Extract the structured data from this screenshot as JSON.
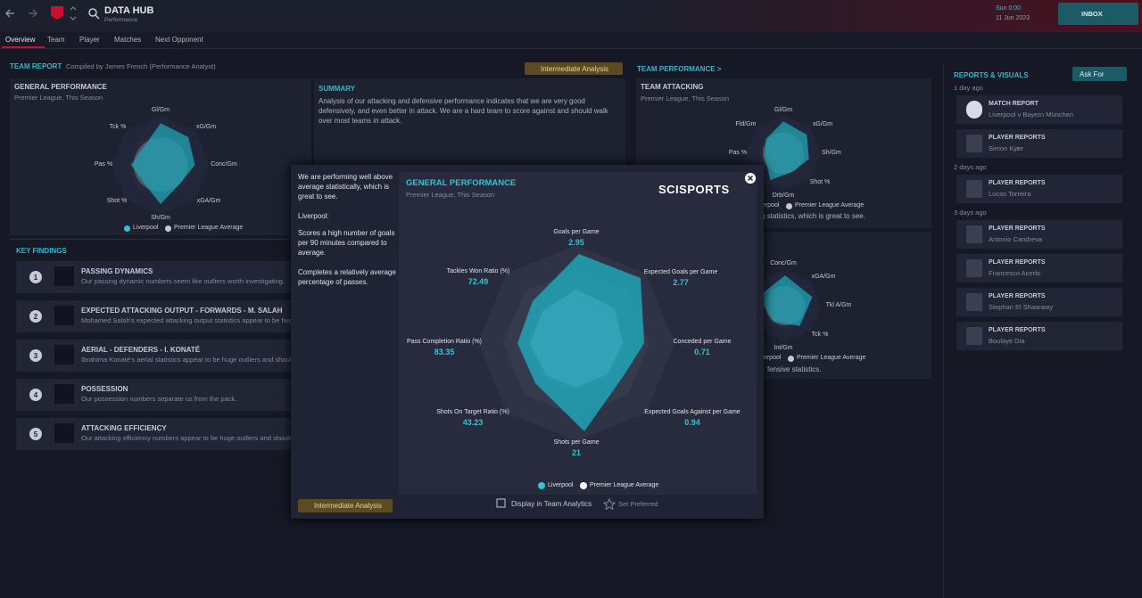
{
  "top_bar": {
    "title": "DATA HUB",
    "subtitle": "Performance",
    "time": "Sun 0:00",
    "date": "11 Jun 2023",
    "inbox": "INBOX"
  },
  "nav": [
    "Overview",
    "Team",
    "Player",
    "Matches",
    "Next Opponent"
  ],
  "team_report": {
    "heading": "TEAM REPORT",
    "compiled_by": "Compiled by James French (Performance Analyst)",
    "badge": "Intermediate Analysis"
  },
  "general_panel": {
    "title": "GENERAL PERFORMANCE",
    "subtitle": "Premier League, This Season",
    "axes": [
      "Gl/Gm",
      "xG/Gm",
      "Conc/Gm",
      "xGA/Gm",
      "Sh/Gm",
      "Shot %",
      "Pas %",
      "Tck %"
    ],
    "legend": [
      "Liverpool",
      "Premier League Average"
    ]
  },
  "summary": {
    "title": "SUMMARY",
    "text": "Analysis of our attacking and defensive performance indicates that we are very good defensively, and even better in attack. We are a hard team to score against and should walk over most teams in attack."
  },
  "key_findings": {
    "heading": "KEY FINDINGS",
    "items": [
      {
        "number": 1,
        "title": "PASSING DYNAMICS",
        "text": "Our passing dynamic numbers seem like outliers worth investigating."
      },
      {
        "number": 2,
        "title": "EXPECTED ATTACKING OUTPUT - FORWARDS - M. SALAH",
        "text": "Mohamed Salah's expected attacking output statistics appear to be huge o"
      },
      {
        "number": 3,
        "title": "AERIAL - DEFENDERS - I. KONATÉ",
        "text": "Ibrahima Konaté's aerial statistics appear to be huge outliers and should be"
      },
      {
        "number": 4,
        "title": "POSSESSION",
        "text": "Our possession numbers separate us from the pack."
      },
      {
        "number": 5,
        "title": "ATTACKING EFFICIENCY",
        "text": "Our attacking efficiency numbers appear to be huge outliers and should be"
      }
    ]
  },
  "team_performance": {
    "heading": "TEAM PERFORMANCE >",
    "attacking": {
      "title": "TEAM ATTACKING",
      "subtitle": "Premier League, This Season",
      "axes": [
        "Gl/Gm",
        "xG/Gm",
        "Sh/Gm",
        "Shot %",
        "Drb/Gm",
        "Pas %",
        "Fld/Gm"
      ],
      "legend": [
        "Liverpool",
        "Premier League Average"
      ],
      "text": "in attacking statistics, which is great to see."
    },
    "defending": {
      "axes": [
        "Conc/Gm",
        "xGA/Gm",
        "Tkl A/Gm",
        "Tck %",
        "Int/Gm"
      ],
      "legend": [
        "Liverpool",
        "Premier League Average"
      ],
      "text": "fensive statistics."
    }
  },
  "reports": {
    "heading": "REPORTS & VISUALS",
    "ask_for": "Ask For",
    "items": [
      {
        "when": "1 day ago",
        "title": "MATCH REPORT",
        "name": "Liverpool v Bayern München"
      },
      {
        "title": "PLAYER REPORTS",
        "name": "Simon Kjær"
      },
      {
        "when": "2 days ago",
        "title": "PLAYER REPORTS",
        "name": "Lucas Torreira"
      },
      {
        "when": "3 days ago",
        "title": "PLAYER REPORTS",
        "name": "Antonio Candreva"
      },
      {
        "title": "PLAYER REPORTS",
        "name": "Francesco Acerbi"
      },
      {
        "title": "PLAYER REPORTS",
        "name": "Stephan El Shaarawy"
      },
      {
        "title": "PLAYER REPORTS",
        "name": "Boulaye Dia"
      }
    ]
  },
  "modal": {
    "notes": [
      "We are performing well above average statistically, which is great to see.",
      "Liverpool:",
      "Scores a high number of goals per 90 minutes compared to average.",
      "Completes a relatively average percentage of passes."
    ],
    "badge": "Intermediate Analysis",
    "chart": {
      "title": "GENERAL PERFORMANCE",
      "subtitle": "Premier League, This Season",
      "brand": "SCISPORTS",
      "axes": [
        {
          "label": "Goals per Game",
          "value": 2.95
        },
        {
          "label": "Expected Goals per Game",
          "value": 2.77
        },
        {
          "label": "Conceded per Game",
          "value": 0.71
        },
        {
          "label": "Expected Goals Against per Game",
          "value": 0.94
        },
        {
          "label": "Shots per Game",
          "value": 21
        },
        {
          "label": "Shots On Target Ratio (%)",
          "value": 43.23
        },
        {
          "label": "Pass Completion Ratio (%)",
          "value": 83.35
        },
        {
          "label": "Tackles Won Ratio (%)",
          "value": 72.49
        }
      ],
      "legend": [
        "Liverpool",
        "Premier League Average"
      ]
    },
    "display_option": "Display in Team Analytics",
    "set_preferred": "Set Preferred"
  }
}
